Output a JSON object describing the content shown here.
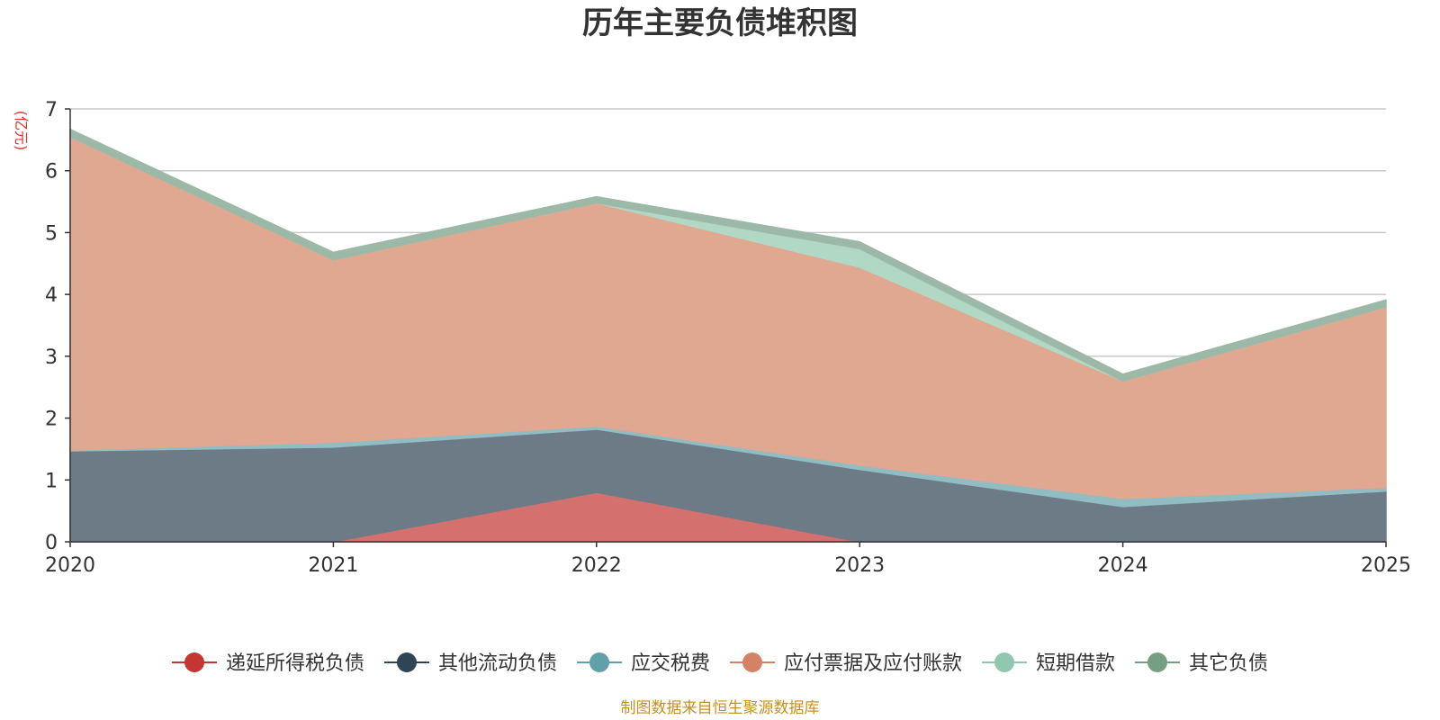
{
  "chart_data": {
    "type": "area",
    "stacked": true,
    "title": "历年主要负债堆积图",
    "unit_label": "(亿元)",
    "categories": [
      "2020",
      "2021",
      "2022",
      "2023",
      "2024",
      "2025"
    ],
    "ylim": [
      0,
      7
    ],
    "yticks": [
      0,
      1,
      2,
      3,
      4,
      5,
      6,
      7
    ],
    "grid": true,
    "legend_position": "bottom",
    "series": [
      {
        "name": "递延所得税负债",
        "color": "#c23531",
        "area_color": "#d4706d",
        "values": [
          0,
          0,
          0.8,
          0,
          0,
          0
        ]
      },
      {
        "name": "其他流动负债",
        "color": "#2f4554",
        "area_color": "#6d7b87",
        "values": [
          1.47,
          1.53,
          1.02,
          1.17,
          0.57,
          0.82
        ]
      },
      {
        "name": "应交税费",
        "color": "#61a0a8",
        "area_color": "#90bcc2",
        "values": [
          0.01,
          0.08,
          0.05,
          0.07,
          0.13,
          0.06
        ]
      },
      {
        "name": "应付票据及应付账款",
        "color": "#d48265",
        "area_color": "#e0a791",
        "values": [
          5.07,
          2.95,
          3.61,
          3.2,
          1.9,
          2.92
        ]
      },
      {
        "name": "短期借款",
        "color": "#91c7ae",
        "area_color": "#b0d8c5",
        "values": [
          0,
          0,
          0,
          0.3,
          0,
          0
        ]
      },
      {
        "name": "其它负债",
        "color": "#749f83",
        "area_color": "#9bb9a6",
        "values": [
          0.12,
          0.12,
          0.1,
          0.11,
          0.11,
          0.11
        ]
      }
    ],
    "source_note": "制图数据来自恒生聚源数据库"
  }
}
